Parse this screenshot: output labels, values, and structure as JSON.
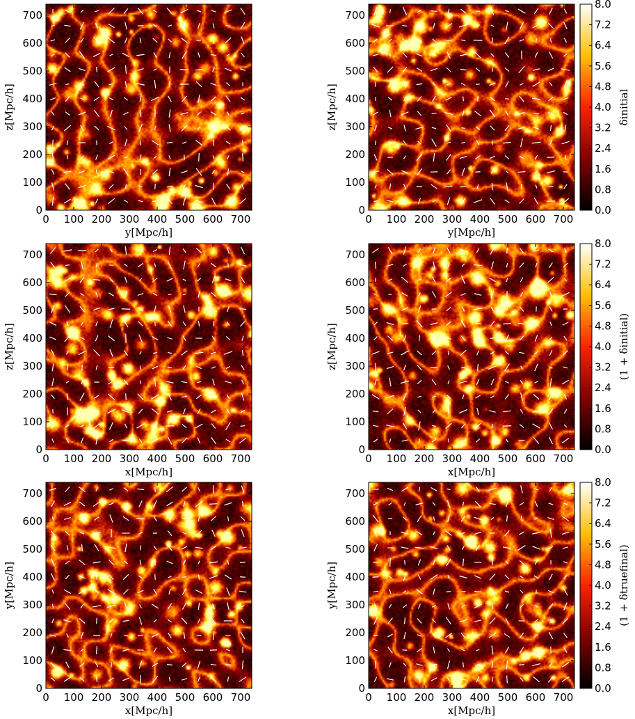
{
  "chart_data": [
    {
      "type": "heatmap",
      "panel": "top-left",
      "xlabel_var": "y",
      "ylabel_var": "z",
      "unit": "[Mpc/h]",
      "xlim": [
        0,
        740
      ],
      "ylim": [
        0,
        740
      ],
      "xticks": [
        0,
        100,
        200,
        300,
        400,
        500,
        600,
        700
      ],
      "yticks": [
        0,
        100,
        200,
        300,
        400,
        500,
        600,
        700
      ],
      "overlay": "white velocity arrows",
      "colormap": "afmhot"
    },
    {
      "type": "heatmap",
      "panel": "top-right",
      "xlabel_var": "y",
      "ylabel_var": "z",
      "unit": "[Mpc/h]",
      "xlim": [
        0,
        740
      ],
      "ylim": [
        0,
        740
      ],
      "xticks": [
        0,
        100,
        200,
        300,
        400,
        500,
        600,
        700
      ],
      "yticks": [
        0,
        100,
        200,
        300,
        400,
        500,
        600,
        700
      ],
      "overlay": "white velocity arrows",
      "colorbar": {
        "label": "δinitial",
        "range": [
          0,
          8.0
        ],
        "ticks": [
          "0.0",
          "0.8",
          "1.6",
          "2.4",
          "3.2",
          "4.0",
          "4.8",
          "5.6",
          "6.4",
          "7.2",
          "8.0"
        ]
      }
    },
    {
      "type": "heatmap",
      "panel": "middle-left",
      "xlabel_var": "x",
      "ylabel_var": "z",
      "unit": "[Mpc/h]",
      "xlim": [
        0,
        740
      ],
      "ylim": [
        0,
        740
      ],
      "xticks": [
        0,
        100,
        200,
        300,
        400,
        500,
        600,
        700
      ],
      "yticks": [
        0,
        100,
        200,
        300,
        400,
        500,
        600,
        700
      ],
      "overlay": "white velocity arrows"
    },
    {
      "type": "heatmap",
      "panel": "middle-right",
      "xlabel_var": "x",
      "ylabel_var": "z",
      "unit": "[Mpc/h]",
      "xlim": [
        0,
        740
      ],
      "ylim": [
        0,
        740
      ],
      "xticks": [
        0,
        100,
        200,
        300,
        400,
        500,
        600,
        700
      ],
      "yticks": [
        0,
        100,
        200,
        300,
        400,
        500,
        600,
        700
      ],
      "overlay": "white velocity arrows",
      "colorbar": {
        "label": "(1 + δinitial)",
        "range": [
          0,
          8.0
        ],
        "ticks": [
          "0.0",
          "0.8",
          "1.6",
          "2.4",
          "3.2",
          "4.0",
          "4.8",
          "5.6",
          "6.4",
          "7.2",
          "8.0"
        ]
      }
    },
    {
      "type": "heatmap",
      "panel": "bottom-left",
      "xlabel_var": "x",
      "ylabel_var": "y",
      "unit": "[Mpc/h]",
      "xlim": [
        0,
        740
      ],
      "ylim": [
        0,
        740
      ],
      "xticks": [
        0,
        100,
        200,
        300,
        400,
        500,
        600,
        700
      ],
      "yticks": [
        0,
        100,
        200,
        300,
        400,
        500,
        600,
        700
      ],
      "overlay": "white velocity arrows"
    },
    {
      "type": "heatmap",
      "panel": "bottom-right",
      "xlabel_var": "x",
      "ylabel_var": "y",
      "unit": "[Mpc/h]",
      "xlim": [
        0,
        740
      ],
      "ylim": [
        0,
        740
      ],
      "xticks": [
        0,
        100,
        200,
        300,
        400,
        500,
        600,
        700
      ],
      "yticks": [
        0,
        100,
        200,
        300,
        400,
        500,
        600,
        700
      ],
      "overlay": "white velocity arrows",
      "colorbar": {
        "label": "(1 + δtruefinal)",
        "range": [
          0,
          8.0
        ],
        "ticks": [
          "0.0",
          "0.8",
          "1.6",
          "2.4",
          "3.2",
          "4.0",
          "4.8",
          "5.6",
          "6.4",
          "7.2",
          "8.0"
        ]
      }
    }
  ],
  "colors": {
    "background_dark": "#1a0000",
    "arrow": "#ffffff"
  }
}
